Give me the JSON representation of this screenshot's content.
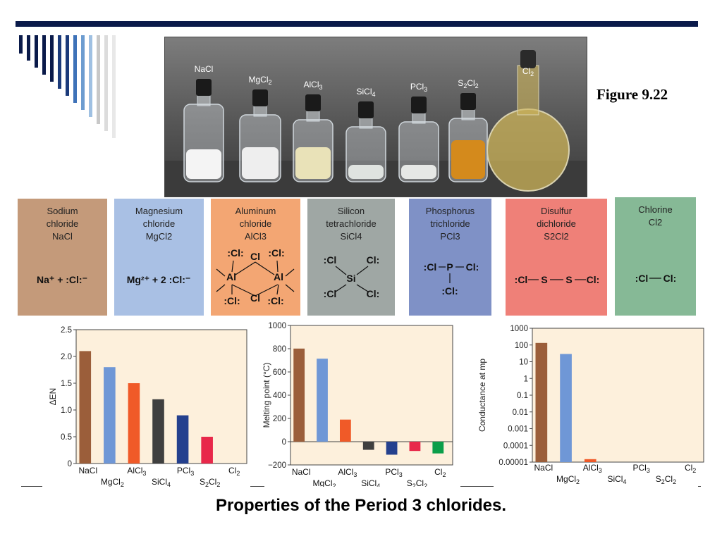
{
  "figure_label": "Figure 9.22",
  "caption": "Properties of the Period 3 chlorides.",
  "colors": {
    "NaCl": "#9b5e3a",
    "MgCl2": "#6f97d6",
    "AlCl3": "#f05a28",
    "SiCl4": "#3f3f3f",
    "PCl3": "#24408e",
    "S2Cl2": "#e8284a",
    "Cl2": "#0b9e4a",
    "plot_bg": "#fdf0dc"
  },
  "photo": {
    "labels": [
      {
        "text": "NaCl"
      },
      {
        "text": "MgCl",
        "sub": "2"
      },
      {
        "text": "AlCl",
        "sub": "3"
      },
      {
        "text": "SiCl",
        "sub": "4"
      },
      {
        "text": "PCl",
        "sub": "3"
      },
      {
        "text": "S",
        "sub": "2",
        "text2": "Cl",
        "sub2": "2"
      },
      {
        "text": "Cl",
        "sub": "2"
      }
    ]
  },
  "cards": [
    {
      "lines": [
        "Sodium",
        "chloride",
        "NaCl"
      ],
      "bg": "#c49a7a"
    },
    {
      "lines": [
        "Magnesium",
        "chloride",
        "MgCl2"
      ],
      "bg": "#a9c0e4"
    },
    {
      "lines": [
        "Aluminum",
        "chloride",
        "AlCl3"
      ],
      "bg": "#f3a673"
    },
    {
      "lines": [
        "Silicon",
        "tetrachloride",
        "SiCl4"
      ],
      "bg": "#9fa7a4"
    },
    {
      "lines": [
        "Phosphorus",
        "trichloride",
        "PCl3"
      ],
      "bg": "#7f91c6"
    },
    {
      "lines": [
        "Disulfur",
        "dichloride",
        "S2Cl2"
      ],
      "bg": "#ef8078"
    },
    {
      "lines": [
        "Chlorine",
        "Cl2"
      ],
      "bg": "#86b996"
    }
  ],
  "lewis": {
    "nacl": "Na⁺ + :Cl:⁻",
    "mgcl2": "Mg²⁺ + 2 :Cl:⁻",
    "cl": "Cl",
    "al": "Al",
    "si": "Si",
    "p": "P",
    "s": "S"
  },
  "chart_data": [
    {
      "type": "bar",
      "categories": [
        "NaCl",
        "MgCl2",
        "AlCl3",
        "SiCl4",
        "PCl3",
        "S2Cl2",
        "Cl2"
      ],
      "values": [
        2.1,
        1.8,
        1.5,
        1.2,
        0.9,
        0.5,
        0
      ],
      "ylabel": "ΔEN",
      "ylim": [
        0,
        2.5
      ],
      "yticks": [
        "0",
        "0.5",
        "1.0",
        "1.5",
        "2.0",
        "2.5"
      ],
      "grid": false
    },
    {
      "type": "bar",
      "categories": [
        "NaCl",
        "MgCl2",
        "AlCl3",
        "SiCl4",
        "PCl3",
        "S2Cl2",
        "Cl2"
      ],
      "values": [
        801,
        714,
        190,
        -70,
        -112,
        -80,
        -101
      ],
      "ylabel": "Melting point (°C)",
      "ylim": [
        -200,
        1000
      ],
      "yticks": [
        "−200",
        "0",
        "200",
        "400",
        "600",
        "800",
        "1000"
      ],
      "grid": false
    },
    {
      "type": "bar",
      "categories": [
        "NaCl",
        "MgCl2",
        "AlCl3",
        "SiCl4",
        "PCl3",
        "S2Cl2",
        "Cl2"
      ],
      "values": [
        133,
        29,
        1.5e-05,
        0,
        0,
        0,
        0
      ],
      "ylabel": "Conductance at mp",
      "ylim": [
        1e-05,
        1000
      ],
      "yscale": "log",
      "yticks": [
        "0.00001",
        "0.0001",
        "0.001",
        "0.01",
        "0.1",
        "1",
        "10",
        "100",
        "1000"
      ],
      "grid": false
    }
  ]
}
